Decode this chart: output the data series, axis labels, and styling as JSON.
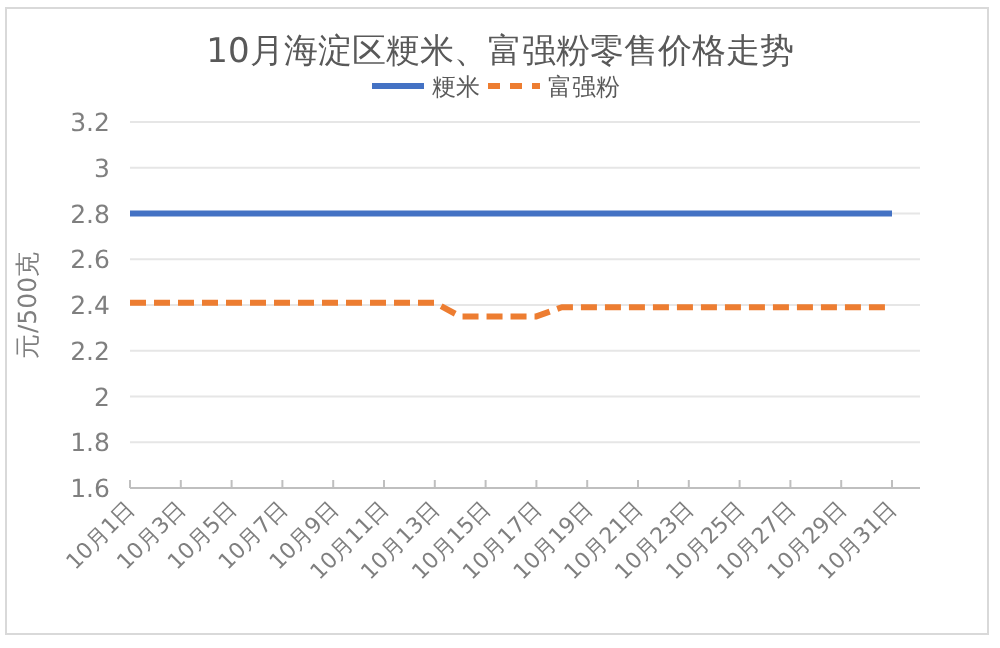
{
  "chart_data": {
    "type": "line",
    "title": "10月海淀区粳米、富强粉零售价格走势",
    "ylabel": "元/500克",
    "categories": [
      "10月1日",
      null,
      "10月3日",
      null,
      "10月5日",
      null,
      "10月7日",
      null,
      "10月9日",
      null,
      "10月11日",
      null,
      "10月13日",
      null,
      "10月15日",
      null,
      "10月17日",
      null,
      "10月19日",
      null,
      "10月21日",
      null,
      "10月23日",
      null,
      "10月25日",
      null,
      "10月27日",
      null,
      "10月29日",
      null,
      "10月31日"
    ],
    "series": [
      {
        "name": "粳米",
        "color": "#4472c4",
        "line_style": "solid",
        "values": [
          2.8,
          2.8,
          2.8,
          2.8,
          2.8,
          2.8,
          2.8,
          2.8,
          2.8,
          2.8,
          2.8,
          2.8,
          2.8,
          2.8,
          2.8,
          2.8,
          2.8,
          2.8,
          2.8,
          2.8,
          2.8,
          2.8,
          2.8,
          2.8,
          2.8,
          2.8,
          2.8,
          2.8,
          2.8,
          2.8,
          2.8
        ]
      },
      {
        "name": "富强粉",
        "color": "#ed7d31",
        "line_style": "dashed",
        "values": [
          2.41,
          2.41,
          2.41,
          2.41,
          2.41,
          2.41,
          2.41,
          2.41,
          2.41,
          2.41,
          2.41,
          2.41,
          2.41,
          2.35,
          2.35,
          2.35,
          2.35,
          2.39,
          2.39,
          2.39,
          2.39,
          2.39,
          2.39,
          2.39,
          2.39,
          2.39,
          2.39,
          2.39,
          2.39,
          2.39,
          2.39
        ]
      }
    ],
    "ylim": [
      1.6,
      3.2
    ],
    "yticks": [
      1.6,
      1.8,
      2,
      2.2,
      2.4,
      2.6,
      2.8,
      3,
      3.2
    ],
    "grid": "y",
    "legend": "top",
    "marker": "none"
  }
}
